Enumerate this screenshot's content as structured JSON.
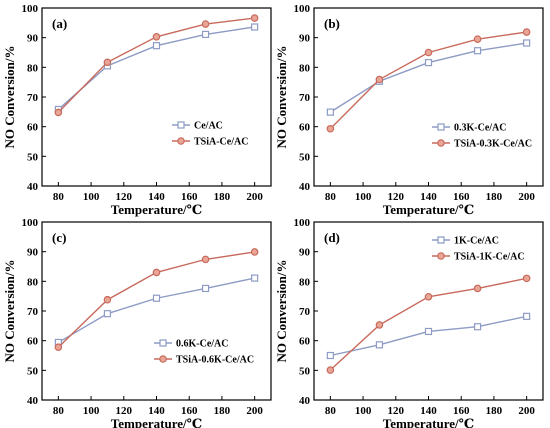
{
  "colors": {
    "series_1": "#8d9bc5",
    "series_2": "#c86a5c",
    "marker_fill_1": "#ffffff",
    "marker_fill_2": "#e9a596",
    "axis": "#000000"
  },
  "chart_data": [
    {
      "type": "line",
      "panel_label": "(a)",
      "xlabel": "Temperature/℃",
      "ylabel": "NO Conversion/%",
      "x": [
        80,
        110,
        140,
        170,
        200
      ],
      "xlim": [
        70,
        210
      ],
      "xticks": [
        80,
        100,
        120,
        140,
        160,
        180,
        200
      ],
      "ylim": [
        40,
        100
      ],
      "yticks": [
        40,
        50,
        60,
        70,
        80,
        90,
        100
      ],
      "legend_position": "lower-right",
      "series": [
        {
          "name": "Ce/AC",
          "marker": "square",
          "values": [
            65.8,
            80.5,
            87.3,
            91.1,
            93.6
          ]
        },
        {
          "name": "TSiA-Ce/AC",
          "marker": "circle",
          "values": [
            64.8,
            81.7,
            90.3,
            94.6,
            96.6
          ]
        }
      ]
    },
    {
      "type": "line",
      "panel_label": "(b)",
      "xlabel": "Temperature/℃",
      "ylabel": "NO Conversion/%",
      "x": [
        80,
        110,
        140,
        170,
        200
      ],
      "xlim": [
        70,
        210
      ],
      "xticks": [
        80,
        100,
        120,
        140,
        160,
        180,
        200
      ],
      "ylim": [
        40,
        100
      ],
      "yticks": [
        40,
        50,
        60,
        70,
        80,
        90,
        100
      ],
      "legend_position": "lower-right",
      "series": [
        {
          "name": "0.3K-Ce/AC",
          "marker": "square",
          "values": [
            64.9,
            75.3,
            81.6,
            85.6,
            88.2
          ]
        },
        {
          "name": "TSiA-0.3K-Ce/AC",
          "marker": "circle",
          "values": [
            59.3,
            75.9,
            85.0,
            89.5,
            91.9
          ]
        }
      ]
    },
    {
      "type": "line",
      "panel_label": "(c)",
      "xlabel": "Temperature/℃",
      "ylabel": "NO Conversion/%",
      "x": [
        80,
        110,
        140,
        170,
        200
      ],
      "xlim": [
        70,
        210
      ],
      "xticks": [
        80,
        100,
        120,
        140,
        160,
        180,
        200
      ],
      "ylim": [
        40,
        100
      ],
      "yticks": [
        40,
        50,
        60,
        70,
        80,
        90,
        100
      ],
      "legend_position": "lower-right",
      "series": [
        {
          "name": "0.6K-Ce/AC",
          "marker": "square",
          "values": [
            59.4,
            69.1,
            74.3,
            77.6,
            81.1
          ]
        },
        {
          "name": "TSiA-0.6K-Ce/AC",
          "marker": "circle",
          "values": [
            57.8,
            73.8,
            83.0,
            87.4,
            89.9
          ]
        }
      ]
    },
    {
      "type": "line",
      "panel_label": "(d)",
      "xlabel": "Temperature/℃",
      "ylabel": "NO Conversion/%",
      "x": [
        80,
        110,
        140,
        170,
        200
      ],
      "xlim": [
        70,
        210
      ],
      "xticks": [
        80,
        100,
        120,
        140,
        160,
        180,
        200
      ],
      "ylim": [
        40,
        100
      ],
      "yticks": [
        40,
        50,
        60,
        70,
        80,
        90,
        100
      ],
      "legend_position": "upper-right",
      "series": [
        {
          "name": "1K-Ce/AC",
          "marker": "square",
          "values": [
            55.0,
            58.6,
            63.1,
            64.7,
            68.2
          ]
        },
        {
          "name": "TSiA-1K-Ce/AC",
          "marker": "circle",
          "values": [
            50.1,
            65.3,
            74.8,
            77.6,
            81.0
          ]
        }
      ]
    }
  ]
}
